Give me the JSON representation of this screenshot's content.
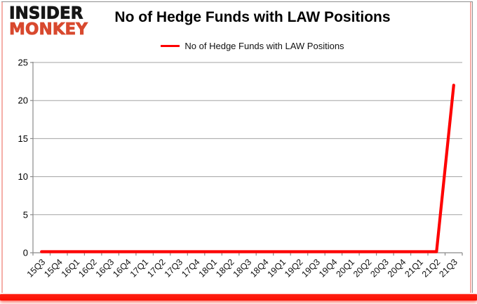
{
  "logo": {
    "line1": "INSIDER",
    "line2": "MONKEY",
    "line1_color": "#161616",
    "line2_color": "#d8492e"
  },
  "header": {
    "title": "No of Hedge Funds with LAW Positions"
  },
  "legend": {
    "label": "No of Hedge Funds with LAW Positions",
    "line_color": "#fe0000"
  },
  "chart_data": {
    "type": "line",
    "title": "No of Hedge Funds with LAW Positions",
    "categories": [
      "15Q3",
      "15Q4",
      "16Q1",
      "16Q2",
      "16Q3",
      "16Q4",
      "17Q1",
      "17Q2",
      "17Q3",
      "17Q4",
      "18Q1",
      "18Q2",
      "18Q3",
      "18Q4",
      "19Q1",
      "19Q2",
      "19Q3",
      "19Q4",
      "20Q1",
      "20Q2",
      "20Q3",
      "20Q4",
      "21Q1",
      "21Q2",
      "21Q3"
    ],
    "series": [
      {
        "name": "No of Hedge Funds with LAW Positions",
        "color": "#fe0000",
        "values": [
          0,
          0,
          0,
          0,
          0,
          0,
          0,
          0,
          0,
          0,
          0,
          0,
          0,
          0,
          0,
          0,
          0,
          0,
          0,
          0,
          0,
          0,
          0,
          0,
          22
        ]
      }
    ],
    "xlabel": "",
    "ylabel": "",
    "ylim": [
      0,
      25
    ],
    "yticks": [
      0,
      5,
      10,
      15,
      20,
      25
    ],
    "grid": "horizontal-only",
    "legend_position": "top-center",
    "x_tick_label_rotation_deg": 45
  },
  "frame": {
    "border_color": "#8f8f8f",
    "grid_color": "#a3a3a3",
    "axis_color": "#8a8a8a",
    "axis_label_color": "#111111",
    "accent_bar_color": "#fb0f02",
    "edge_glow_color": "#f5aea8",
    "background": "#ffffff"
  }
}
